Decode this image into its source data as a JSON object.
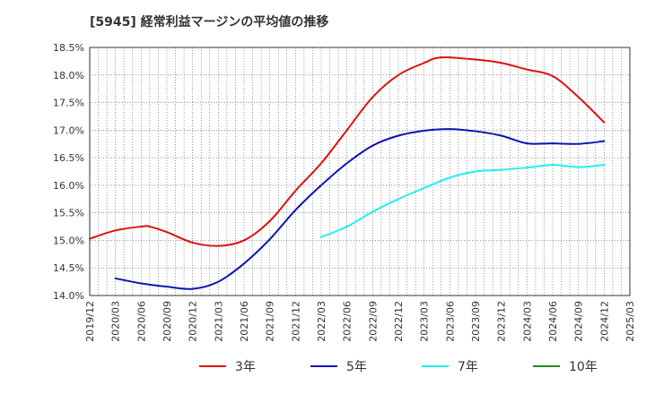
{
  "chart_data": {
    "type": "line",
    "title": "[5945]  経常利益マージンの平均値の推移",
    "xlabel": "",
    "ylabel": "",
    "ylim": [
      14.0,
      18.5
    ],
    "yticks": [
      "14.0%",
      "14.5%",
      "15.0%",
      "15.5%",
      "16.0%",
      "16.5%",
      "17.0%",
      "17.5%",
      "18.0%",
      "18.5%"
    ],
    "yticks_values": [
      14.0,
      14.5,
      15.0,
      15.5,
      16.0,
      16.5,
      17.0,
      17.5,
      18.0,
      18.5
    ],
    "xrange": [
      "2019-12",
      "2025-03"
    ],
    "xticks": [
      "2019/12",
      "2020/03",
      "2020/06",
      "2020/09",
      "2020/12",
      "2021/03",
      "2021/06",
      "2021/09",
      "2021/12",
      "2022/03",
      "2022/06",
      "2022/09",
      "2022/12",
      "2023/03",
      "2023/06",
      "2023/09",
      "2023/12",
      "2024/03",
      "2024/06",
      "2024/09",
      "2024/12",
      "2025/03"
    ],
    "grid": true,
    "legend_position": "bottom",
    "series": [
      {
        "name": "3年",
        "color": "#dd1111",
        "points": [
          [
            "2019-12",
            15.03
          ],
          [
            "2020-03",
            15.18
          ],
          [
            "2020-06",
            15.25
          ],
          [
            "2020-07",
            15.25
          ],
          [
            "2020-09",
            15.15
          ],
          [
            "2020-12",
            14.96
          ],
          [
            "2021-03",
            14.9
          ],
          [
            "2021-06",
            15.0
          ],
          [
            "2021-09",
            15.35
          ],
          [
            "2021-12",
            15.9
          ],
          [
            "2022-03",
            16.4
          ],
          [
            "2022-06",
            17.0
          ],
          [
            "2022-09",
            17.6
          ],
          [
            "2022-12",
            18.0
          ],
          [
            "2023-03",
            18.22
          ],
          [
            "2023-05",
            18.32
          ],
          [
            "2023-09",
            18.28
          ],
          [
            "2023-12",
            18.22
          ],
          [
            "2024-03",
            18.1
          ],
          [
            "2024-06",
            17.98
          ],
          [
            "2024-09",
            17.6
          ],
          [
            "2024-12",
            17.14
          ]
        ]
      },
      {
        "name": "5年",
        "color": "#0a14b4",
        "points": [
          [
            "2020-03",
            14.31
          ],
          [
            "2020-06",
            14.22
          ],
          [
            "2020-09",
            14.16
          ],
          [
            "2020-12",
            14.12
          ],
          [
            "2021-03",
            14.25
          ],
          [
            "2021-06",
            14.58
          ],
          [
            "2021-09",
            15.02
          ],
          [
            "2021-12",
            15.55
          ],
          [
            "2022-03",
            16.0
          ],
          [
            "2022-06",
            16.4
          ],
          [
            "2022-09",
            16.72
          ],
          [
            "2022-12",
            16.9
          ],
          [
            "2023-03",
            16.99
          ],
          [
            "2023-06",
            17.02
          ],
          [
            "2023-09",
            16.98
          ],
          [
            "2023-12",
            16.9
          ],
          [
            "2024-03",
            16.76
          ],
          [
            "2024-06",
            16.76
          ],
          [
            "2024-09",
            16.75
          ],
          [
            "2024-12",
            16.8
          ]
        ]
      },
      {
        "name": "7年",
        "color": "#22eeee",
        "points": [
          [
            "2022-03",
            15.06
          ],
          [
            "2022-06",
            15.25
          ],
          [
            "2022-09",
            15.52
          ],
          [
            "2022-12",
            15.75
          ],
          [
            "2023-03",
            15.95
          ],
          [
            "2023-06",
            16.14
          ],
          [
            "2023-09",
            16.25
          ],
          [
            "2023-12",
            16.28
          ],
          [
            "2024-03",
            16.32
          ],
          [
            "2024-06",
            16.37
          ],
          [
            "2024-09",
            16.33
          ],
          [
            "2024-12",
            16.37
          ]
        ]
      },
      {
        "name": "10年",
        "color": "#228b22",
        "points": []
      }
    ]
  }
}
